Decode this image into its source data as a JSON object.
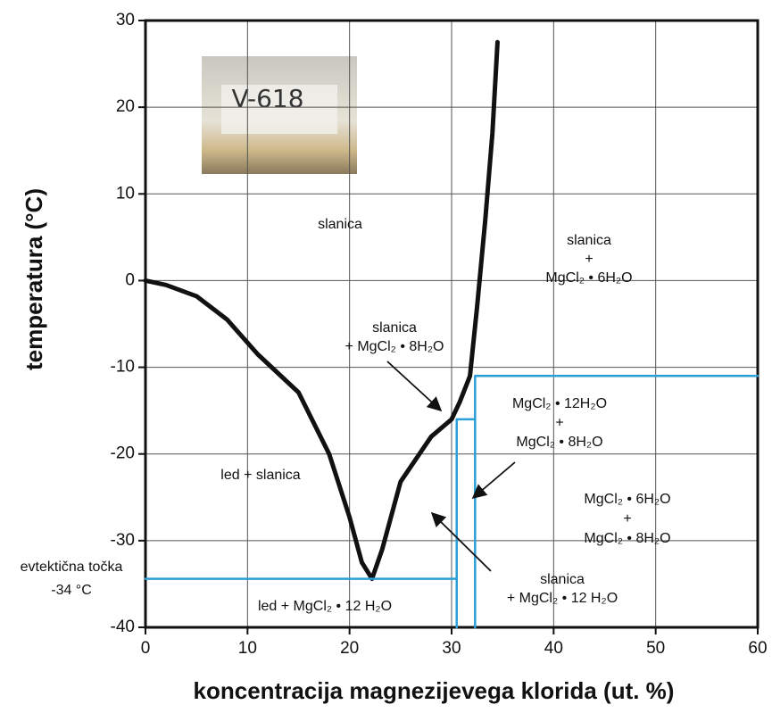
{
  "chart_data": {
    "type": "line",
    "xlabel": "koncentracija magnezijevega klorida (ut. %)",
    "ylabel": "temperatura (°C)",
    "xlim": [
      0,
      60
    ],
    "ylim": [
      -40,
      30
    ],
    "xticks": [
      0,
      10,
      20,
      30,
      40,
      50,
      60
    ],
    "yticks": [
      -40,
      -30,
      -20,
      -10,
      0,
      10,
      20,
      30
    ],
    "grid": true,
    "lines": [
      {
        "color": "#111111",
        "x": [
          0,
          2,
          5,
          8,
          11,
          15,
          18,
          20,
          21.2,
          22.2,
          23.2,
          25,
          28,
          30,
          30.8,
          31.8,
          32.5,
          33.3,
          34,
          34.5
        ],
        "y": [
          0,
          -0.5,
          -1.8,
          -4.5,
          -8.5,
          -12.9,
          -20,
          -27.3,
          -32.5,
          -34.4,
          -31,
          -23.2,
          -18,
          -16,
          -14,
          -11,
          -3,
          7,
          17,
          27.5
        ]
      },
      {
        "color": "#2a9fd8",
        "x": [
          0,
          30.5
        ],
        "y": [
          -34.4,
          -34.4
        ]
      },
      {
        "color": "#2a9fd8",
        "x": [
          30.5,
          30.5,
          32.3
        ],
        "y": [
          -40,
          -16,
          -16
        ]
      },
      {
        "color": "#2a9fd8",
        "x": [
          32.3,
          32.3,
          60
        ],
        "y": [
          -40,
          -11,
          -11
        ]
      }
    ],
    "annotations": [
      [
        "slanica"
      ],
      [
        "slanica",
        "+",
        "MgCl₂ • 6H₂O"
      ],
      [
        "slanica",
        "+ MgCl₂ • 8H₂O"
      ],
      [
        "MgCl₂ • 12H₂O",
        "+",
        "MgCl₂ • 8H₂O"
      ],
      [
        "led + slanica"
      ],
      [
        "MgCl₂ • 6H₂O",
        "+",
        "MgCl₂ • 8H₂O"
      ],
      [
        "evtektična točka",
        "-34 °C"
      ],
      [
        "slanica",
        "+ MgCl₂ • 12 H₂O"
      ],
      [
        "led + MgCl₂ • 12 H₂O"
      ]
    ],
    "inset_label": "V-618"
  }
}
